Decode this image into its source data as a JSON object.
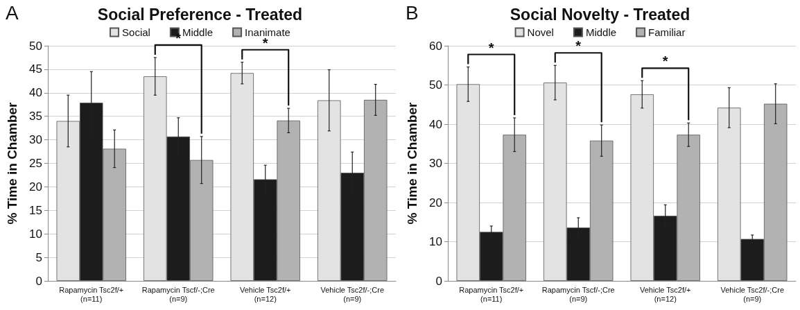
{
  "chart_data": [
    {
      "type": "bar",
      "title": "Social Preference - Treated",
      "ylabel": "% Time in Chamber",
      "categories": [
        "Rapamycin Tsc2f/+\n(n=11)",
        "Rapamycin Tscf/-;Cre\n(n=9)",
        "Vehicle Tsc2f/+\n(n=12)",
        "Vehicle Tsc2f/-;Cre\n(n=9)"
      ],
      "series": [
        {
          "name": "Social",
          "color": "#e3e3e3",
          "values": [
            34,
            43.5,
            44.2,
            38.4
          ],
          "errors": [
            5.5,
            4,
            2.3,
            6.5
          ]
        },
        {
          "name": "Middle",
          "color": "#1c1c1c",
          "values": [
            37.9,
            30.7,
            21.6,
            23
          ],
          "errors": [
            6.6,
            4,
            3,
            4.4
          ]
        },
        {
          "name": "Inanimate",
          "color": "#b2b2b2",
          "values": [
            28.1,
            25.7,
            34.1,
            38.5
          ],
          "errors": [
            4,
            5,
            2.6,
            3.3
          ]
        }
      ],
      "ylim": [
        0,
        50
      ],
      "yticks": [
        0,
        5,
        10,
        15,
        20,
        25,
        30,
        35,
        40,
        45,
        50
      ],
      "grid": "y",
      "legend": "top",
      "annotations": [
        "A",
        "*",
        "*"
      ]
    },
    {
      "type": "bar",
      "title": "Social Novelty - Treated",
      "ylabel": "% Time in Chamber",
      "categories": [
        "Rapamycin Tsc2f/+\n(n=11)",
        "Rapamycin Tscf/-;Cre\n(n=9)",
        "Vehicle Tsc2f/+\n(n=12)",
        "Vehicle Tsc2f/-;Cre\n(n=9)"
      ],
      "series": [
        {
          "name": "Novel",
          "color": "#e3e3e3",
          "values": [
            50.2,
            50.6,
            47.6,
            44.2
          ],
          "errors": [
            4.4,
            4.4,
            3.5,
            5.1
          ]
        },
        {
          "name": "Middle",
          "color": "#1c1c1c",
          "values": [
            12.5,
            13.6,
            16.6,
            10.7
          ],
          "errors": [
            1.5,
            2.5,
            2.8,
            1
          ]
        },
        {
          "name": "Familiar",
          "color": "#b2b2b2",
          "values": [
            37.3,
            35.8,
            37.3,
            45.2
          ],
          "errors": [
            4.3,
            4,
            3,
            5.1
          ]
        }
      ],
      "ylim": [
        0,
        60
      ],
      "yticks": [
        0,
        10,
        20,
        30,
        40,
        50,
        60
      ],
      "grid": "y",
      "legend": "top",
      "annotations": [
        "B",
        "*",
        "*",
        "*"
      ]
    }
  ]
}
